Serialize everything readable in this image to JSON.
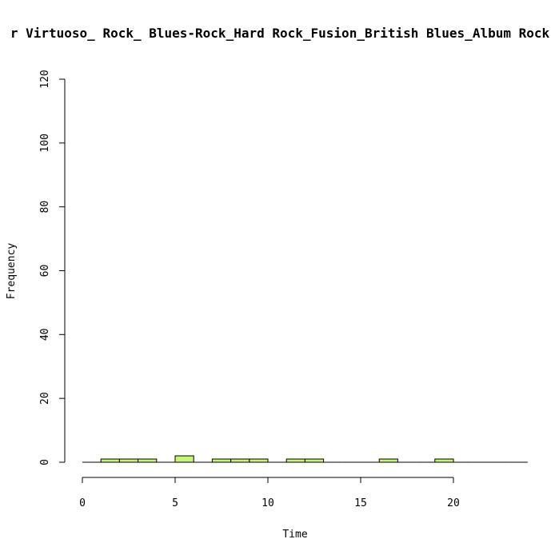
{
  "chart_data": {
    "type": "bar",
    "title": "r Virtuoso_ Rock_ Blues-Rock_Hard Rock_Fusion_British Blues_Album Rock",
    "xlabel": "Time",
    "ylabel": "Frequency",
    "xlim": [
      0,
      24
    ],
    "ylim": [
      0,
      120
    ],
    "x_ticks": [
      0,
      5,
      10,
      15,
      20
    ],
    "y_ticks": [
      0,
      20,
      40,
      60,
      80,
      100,
      120
    ],
    "bin_width": 1,
    "bins": [
      {
        "start": 0,
        "count": 0
      },
      {
        "start": 1,
        "count": 1
      },
      {
        "start": 2,
        "count": 1
      },
      {
        "start": 3,
        "count": 1
      },
      {
        "start": 4,
        "count": 0
      },
      {
        "start": 5,
        "count": 2
      },
      {
        "start": 6,
        "count": 0
      },
      {
        "start": 7,
        "count": 1
      },
      {
        "start": 8,
        "count": 1
      },
      {
        "start": 9,
        "count": 1
      },
      {
        "start": 10,
        "count": 0
      },
      {
        "start": 11,
        "count": 1
      },
      {
        "start": 12,
        "count": 1
      },
      {
        "start": 13,
        "count": 0
      },
      {
        "start": 14,
        "count": 0
      },
      {
        "start": 15,
        "count": 0
      },
      {
        "start": 16,
        "count": 1
      },
      {
        "start": 17,
        "count": 0
      },
      {
        "start": 18,
        "count": 0
      },
      {
        "start": 19,
        "count": 1
      },
      {
        "start": 20,
        "count": 0
      },
      {
        "start": 21,
        "count": 0
      },
      {
        "start": 22,
        "count": 0
      },
      {
        "start": 23,
        "count": 0
      }
    ],
    "bar_color": "#c6f57a",
    "grid": false,
    "legend": "none"
  }
}
